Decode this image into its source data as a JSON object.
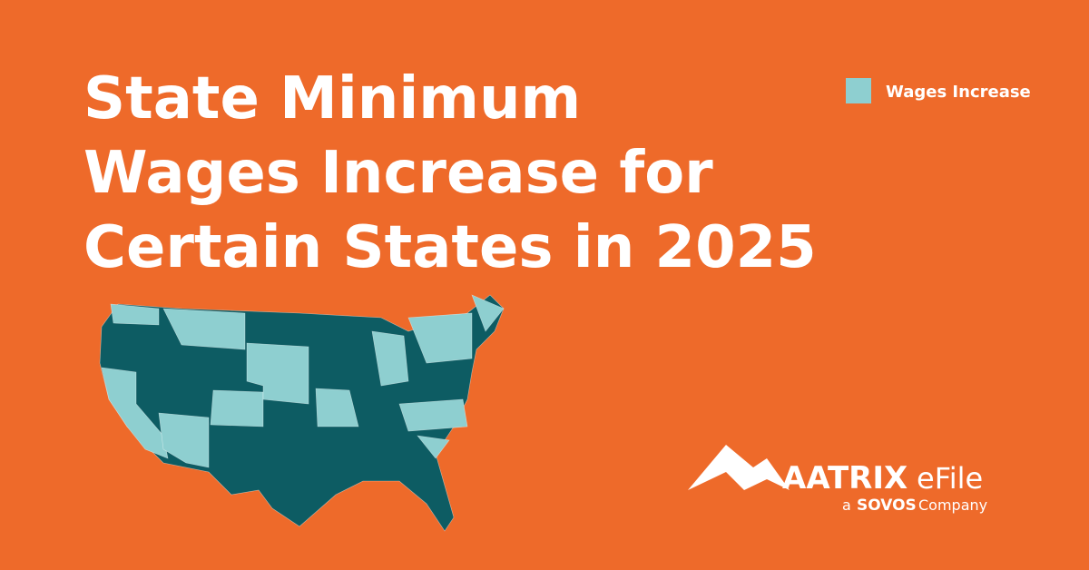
{
  "title_lines": [
    "State Minimum",
    "Wages Increase for",
    "Certain States in 2025"
  ],
  "legend": {
    "label": "Wages Increase",
    "color": "#8ecfd0"
  },
  "other_color": "#0d5c63",
  "logo": {
    "brand": "AATRIX",
    "product": "eFile",
    "prefix": "a",
    "parent": "SOVOS",
    "suffix": "Company"
  }
}
